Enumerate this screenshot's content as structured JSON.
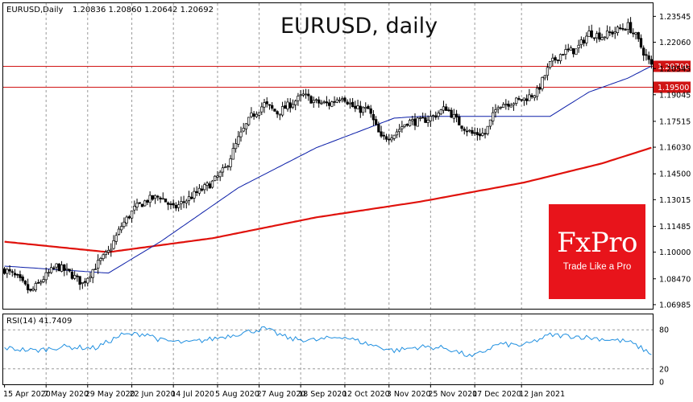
{
  "header": {
    "symbol_info": "EURUSD,Daily",
    "ohlc": "1.20836 1.20860 1.20642 1.20692",
    "big_title": "EURUSD, daily"
  },
  "rsi_label": "RSI(14) 41.7409",
  "logo": {
    "name": "FxPro",
    "tagline": "Trade Like a Pro"
  },
  "colors": {
    "ma_slow": "#e0120c",
    "ma_fast": "#0b1ea8",
    "rsi": "#1f8fe0",
    "level_line": "#d01414",
    "candle_up": "#ffffff",
    "candle_down": "#000000",
    "logo_bg": "#e8141b"
  },
  "chart_data": {
    "type": "candlestick",
    "title": "EURUSD, daily",
    "ylim": [
      1.0675,
      1.243
    ],
    "y_ticks": [
      "1.23545",
      "1.22060",
      "1.20545",
      "1.19045",
      "1.17515",
      "1.16030",
      "1.14500",
      "1.13015",
      "1.11485",
      "1.10000",
      "1.08470",
      "1.06985"
    ],
    "x_ticks": [
      "15 Apr 2020",
      "7 May 2020",
      "29 May 2020",
      "22 Jun 2020",
      "14 Jul 2020",
      "5 Aug 2020",
      "27 Aug 2020",
      "18 Sep 2020",
      "12 Oct 2020",
      "3 Nov 2020",
      "25 Nov 2020",
      "17 Dec 2020",
      "12 Jan 2021"
    ],
    "levels": [
      {
        "value": 1.207,
        "label": "1.20700"
      },
      {
        "value": 1.195,
        "label": "1.19500"
      }
    ],
    "close_anchors": [
      [
        0,
        1.09
      ],
      [
        5,
        1.085
      ],
      [
        10,
        1.077
      ],
      [
        15,
        1.085
      ],
      [
        20,
        1.092
      ],
      [
        25,
        1.088
      ],
      [
        30,
        1.082
      ],
      [
        35,
        1.092
      ],
      [
        40,
        1.1
      ],
      [
        45,
        1.115
      ],
      [
        50,
        1.125
      ],
      [
        55,
        1.13
      ],
      [
        60,
        1.132
      ],
      [
        65,
        1.125
      ],
      [
        70,
        1.13
      ],
      [
        75,
        1.135
      ],
      [
        80,
        1.14
      ],
      [
        85,
        1.148
      ],
      [
        90,
        1.165
      ],
      [
        95,
        1.178
      ],
      [
        100,
        1.185
      ],
      [
        105,
        1.18
      ],
      [
        110,
        1.185
      ],
      [
        115,
        1.19
      ],
      [
        120,
        1.186
      ],
      [
        125,
        1.185
      ],
      [
        130,
        1.19
      ],
      [
        135,
        1.182
      ],
      [
        140,
        1.182
      ],
      [
        145,
        1.165
      ],
      [
        150,
        1.168
      ],
      [
        155,
        1.175
      ],
      [
        160,
        1.175
      ],
      [
        165,
        1.178
      ],
      [
        170,
        1.183
      ],
      [
        175,
        1.174
      ],
      [
        180,
        1.168
      ],
      [
        185,
        1.168
      ],
      [
        190,
        1.185
      ],
      [
        195,
        1.186
      ],
      [
        200,
        1.188
      ],
      [
        205,
        1.192
      ],
      [
        210,
        1.208
      ],
      [
        215,
        1.215
      ],
      [
        220,
        1.216
      ],
      [
        225,
        1.226
      ],
      [
        230,
        1.224
      ],
      [
        235,
        1.227
      ],
      [
        240,
        1.23
      ],
      [
        243,
        1.224
      ],
      [
        246,
        1.215
      ],
      [
        249,
        1.2069
      ]
    ],
    "ma_slow": [
      [
        0,
        1.106
      ],
      [
        40,
        1.1
      ],
      [
        80,
        1.108
      ],
      [
        120,
        1.12
      ],
      [
        160,
        1.129
      ],
      [
        200,
        1.14
      ],
      [
        230,
        1.151
      ],
      [
        249,
        1.16
      ]
    ],
    "ma_fast": [
      [
        0,
        1.092
      ],
      [
        40,
        1.088
      ],
      [
        60,
        1.106
      ],
      [
        90,
        1.137
      ],
      [
        120,
        1.16
      ],
      [
        150,
        1.177
      ],
      [
        160,
        1.178
      ],
      [
        210,
        1.178
      ],
      [
        225,
        1.192
      ],
      [
        240,
        1.2
      ],
      [
        249,
        1.2069
      ]
    ],
    "rsi": {
      "name": "RSI(14)",
      "last": 41.7409,
      "levels": [
        80,
        20
      ],
      "axis_labels": [
        "80",
        "20",
        "0"
      ],
      "anchors": [
        [
          0,
          52
        ],
        [
          12,
          48
        ],
        [
          22,
          54
        ],
        [
          35,
          52
        ],
        [
          45,
          72
        ],
        [
          55,
          74
        ],
        [
          60,
          64
        ],
        [
          70,
          60
        ],
        [
          80,
          66
        ],
        [
          90,
          74
        ],
        [
          100,
          82
        ],
        [
          110,
          66
        ],
        [
          120,
          64
        ],
        [
          130,
          70
        ],
        [
          140,
          58
        ],
        [
          150,
          48
        ],
        [
          160,
          54
        ],
        [
          170,
          52
        ],
        [
          180,
          38
        ],
        [
          190,
          58
        ],
        [
          200,
          56
        ],
        [
          210,
          72
        ],
        [
          220,
          70
        ],
        [
          230,
          66
        ],
        [
          240,
          62
        ],
        [
          246,
          50
        ],
        [
          249,
          42
        ]
      ]
    }
  }
}
